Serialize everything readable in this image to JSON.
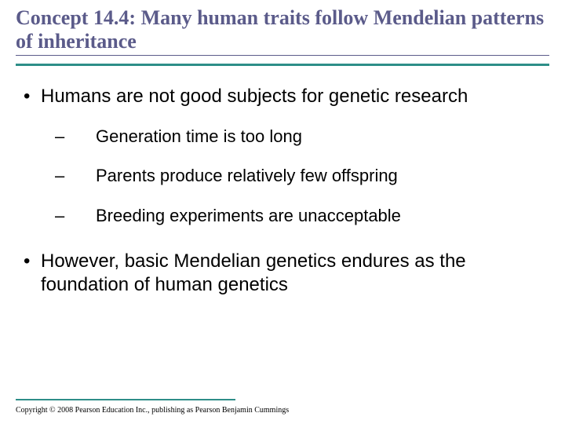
{
  "colors": {
    "title_text": "#5b5b8a",
    "title_underline": "#5b5b8a",
    "accent_rule": "#2e8e88",
    "body_text": "#000000",
    "background": "#ffffff"
  },
  "typography": {
    "title_font": "Times New Roman",
    "title_size_pt": 20,
    "title_weight": "bold",
    "body_font": "Arial",
    "l1_size_pt": 18,
    "l2_size_pt": 16,
    "footer_font": "Times New Roman",
    "footer_size_pt": 8
  },
  "title": "Concept 14.4: Many human traits follow Mendelian patterns of inheritance",
  "bullets": {
    "l1a": "Humans are not good subjects for genetic research",
    "sub": {
      "a": "Generation time is too long",
      "b": "Parents produce relatively few offspring",
      "c": "Breeding experiments are unacceptable"
    },
    "l1b": "However, basic Mendelian genetics endures as the foundation of human genetics"
  },
  "markers": {
    "l1": "•",
    "l2": "–"
  },
  "footer": "Copyright © 2008 Pearson Education Inc., publishing as Pearson Benjamin Cummings"
}
